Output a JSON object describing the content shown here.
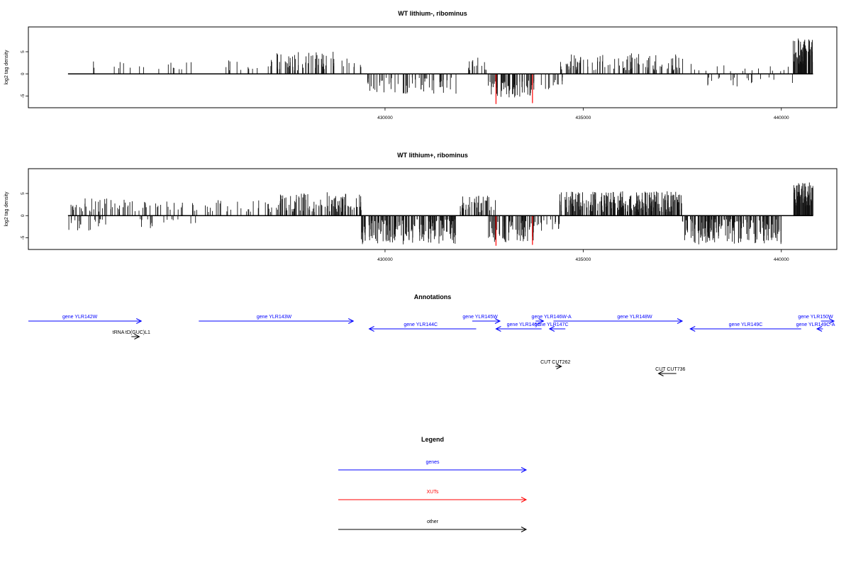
{
  "colors": {
    "gene": "#0000ff",
    "xut": "#ff0000",
    "other": "#000000",
    "axis": "#000000"
  },
  "chart_data": [
    {
      "type": "bar",
      "panel": "lithium_minus",
      "title": "WT lithium-, ribominus",
      "ylabel": "log2 tag density",
      "xlim": [
        421000,
        441400
      ],
      "ylim": [
        -7,
        9
      ],
      "xticks": [
        430000,
        435000,
        440000
      ],
      "xtick_labels": [
        "430000",
        "435000",
        "440000"
      ],
      "yticks": [
        5,
        0,
        -5
      ],
      "ytick_labels": [
        "5",
        "0",
        "-5"
      ],
      "baseline_x": [
        422000,
        440800
      ],
      "highlight_color": "#ff0000",
      "highlights": [
        {
          "x": 432800,
          "y": -6.8
        },
        {
          "x": 433720,
          "y": -6.6
        }
      ],
      "segments": [
        {
          "x0": 422200,
          "x1": 422900,
          "lo": 1.0,
          "hi": 2.8,
          "dens": 0.06
        },
        {
          "x0": 422900,
          "x1": 425300,
          "lo": 0.8,
          "hi": 3.0,
          "dens": 0.12
        },
        {
          "x0": 425300,
          "x1": 427100,
          "lo": 0.8,
          "hi": 3.2,
          "dens": 0.12
        },
        {
          "x0": 427100,
          "x1": 429100,
          "lo": 0.8,
          "hi": 5.0,
          "dens": 0.55
        },
        {
          "x0": 429100,
          "x1": 429500,
          "lo": 0.5,
          "hi": 3.0,
          "dens": 0.2
        },
        {
          "x0": 429500,
          "x1": 431900,
          "lo": -4.5,
          "hi": -0.8,
          "dens": 0.45
        },
        {
          "x0": 432100,
          "x1": 432600,
          "lo": 0.8,
          "hi": 4.0,
          "dens": 0.5
        },
        {
          "x0": 432600,
          "x1": 433800,
          "lo": -5.5,
          "hi": -1.5,
          "dens": 0.9
        },
        {
          "x0": 433800,
          "x1": 434500,
          "lo": -3.5,
          "hi": -0.8,
          "dens": 0.3
        },
        {
          "x0": 434300,
          "x1": 434600,
          "lo": 0.8,
          "hi": 3.0,
          "dens": 0.3
        },
        {
          "x0": 434600,
          "x1": 437600,
          "lo": 0.8,
          "hi": 4.8,
          "dens": 0.55
        },
        {
          "x0": 437600,
          "x1": 440400,
          "lo": -3.0,
          "hi": -0.8,
          "dens": 0.12
        },
        {
          "x0": 437600,
          "x1": 440400,
          "lo": 0.6,
          "hi": 2.5,
          "dens": 0.1
        },
        {
          "x0": 440300,
          "x1": 440800,
          "lo": 2.0,
          "hi": 8.0,
          "dens": 2.5
        }
      ]
    },
    {
      "type": "bar",
      "panel": "lithium_plus",
      "title": "WT lithium+, ribominus",
      "ylabel": "log2 tag density",
      "xlim": [
        421000,
        441400
      ],
      "ylim": [
        -7,
        9
      ],
      "xticks": [
        430000,
        435000,
        440000
      ],
      "xtick_labels": [
        "430000",
        "435000",
        "440000"
      ],
      "yticks": [
        5,
        0,
        -5
      ],
      "ytick_labels": [
        "5",
        "0",
        "-5"
      ],
      "baseline_x": [
        422000,
        440800
      ],
      "highlight_color": "#ff0000",
      "highlights": [
        {
          "x": 432800,
          "y": -6.8
        },
        {
          "x": 433720,
          "y": -6.6
        }
      ],
      "segments": [
        {
          "x0": 422000,
          "x1": 423500,
          "lo": 0.8,
          "hi": 4.0,
          "dens": 0.45
        },
        {
          "x0": 422000,
          "x1": 423000,
          "lo": -3.5,
          "hi": -0.8,
          "dens": 0.35
        },
        {
          "x0": 423500,
          "x1": 425300,
          "lo": 0.8,
          "hi": 3.5,
          "dens": 0.3
        },
        {
          "x0": 423800,
          "x1": 425300,
          "lo": -3.0,
          "hi": -0.8,
          "dens": 0.2
        },
        {
          "x0": 425300,
          "x1": 427100,
          "lo": 0.8,
          "hi": 3.5,
          "dens": 0.25
        },
        {
          "x0": 427100,
          "x1": 429400,
          "lo": 0.8,
          "hi": 5.5,
          "dens": 0.85
        },
        {
          "x0": 429400,
          "x1": 431800,
          "lo": -6.5,
          "hi": -0.8,
          "dens": 1.3
        },
        {
          "x0": 431900,
          "x1": 432800,
          "lo": 0.8,
          "hi": 4.5,
          "dens": 0.8
        },
        {
          "x0": 432600,
          "x1": 433800,
          "lo": -6.0,
          "hi": -1.0,
          "dens": 1.1
        },
        {
          "x0": 433800,
          "x1": 434400,
          "lo": -3.5,
          "hi": -0.8,
          "dens": 0.45
        },
        {
          "x0": 434400,
          "x1": 437500,
          "lo": 0.8,
          "hi": 5.5,
          "dens": 1.5
        },
        {
          "x0": 437500,
          "x1": 440000,
          "lo": -6.5,
          "hi": -0.8,
          "dens": 1.3
        },
        {
          "x0": 440300,
          "x1": 440800,
          "lo": 2.0,
          "hi": 7.5,
          "dens": 2.5
        }
      ]
    }
  ],
  "annotations": {
    "title": "Annotations",
    "xlim": [
      421000,
      441400
    ],
    "features": [
      {
        "label": "gene YLR142W",
        "type": "gene",
        "dir": 1,
        "start": 421000,
        "end": 423850,
        "row": 0,
        "label_x": 422300
      },
      {
        "label": "gene YLR143W",
        "type": "gene",
        "dir": 1,
        "start": 425300,
        "end": 429200,
        "row": 0,
        "label_x": 427200
      },
      {
        "label": "gene YLR144C",
        "type": "gene",
        "dir": -1,
        "start": 429600,
        "end": 432300,
        "row": 1,
        "label_x": 430900
      },
      {
        "label": "gene YLR145W",
        "type": "gene",
        "dir": 1,
        "start": 432200,
        "end": 432900,
        "row": 0,
        "label_x": 432400
      },
      {
        "label": "gene YLR146W-A",
        "type": "gene",
        "dir": 1,
        "start": 433800,
        "end": 434000,
        "row": 0,
        "label_x": 434200
      },
      {
        "label": "gene YLR146C",
        "type": "gene",
        "dir": -1,
        "start": 432800,
        "end": 433950,
        "row": 1,
        "label_x": 433500
      },
      {
        "label": "gene YLR147C",
        "type": "gene",
        "dir": -1,
        "start": 434150,
        "end": 434550,
        "row": 1,
        "label_x": 434200
      },
      {
        "label": "gene YLR148W",
        "type": "gene",
        "dir": 1,
        "start": 434250,
        "end": 437500,
        "row": 0,
        "label_x": 436300
      },
      {
        "label": "gene YLR149C",
        "type": "gene",
        "dir": -1,
        "start": 437700,
        "end": 440500,
        "row": 1,
        "label_x": 439100
      },
      {
        "label": "gene YLR149C-A",
        "type": "gene",
        "dir": -1,
        "start": 440900,
        "end": 441050,
        "row": 1,
        "label_x": 441000
      },
      {
        "label": "gene YLR150W",
        "type": "gene",
        "dir": 1,
        "start": 441000,
        "end": 442200,
        "row": 0,
        "label_x": 441900
      },
      {
        "label": "tRNA tD(GUC)L1",
        "type": "other",
        "dir": 1,
        "start": 423600,
        "end": 423800,
        "row": 2,
        "label_x": 423600
      },
      {
        "label": "CUT CUT262",
        "type": "other",
        "dir": 1,
        "start": 434300,
        "end": 434450,
        "row": 3,
        "label_x": 434300
      },
      {
        "label": "CUT CUT736",
        "type": "other",
        "dir": -1,
        "start": 436900,
        "end": 437350,
        "row": 4,
        "label_x": 437200
      }
    ]
  },
  "legend": {
    "title": "Legend",
    "items": [
      {
        "label": "genes",
        "key": "gene"
      },
      {
        "label": "XUTs",
        "key": "xut"
      },
      {
        "label": "other",
        "key": "other"
      }
    ]
  }
}
